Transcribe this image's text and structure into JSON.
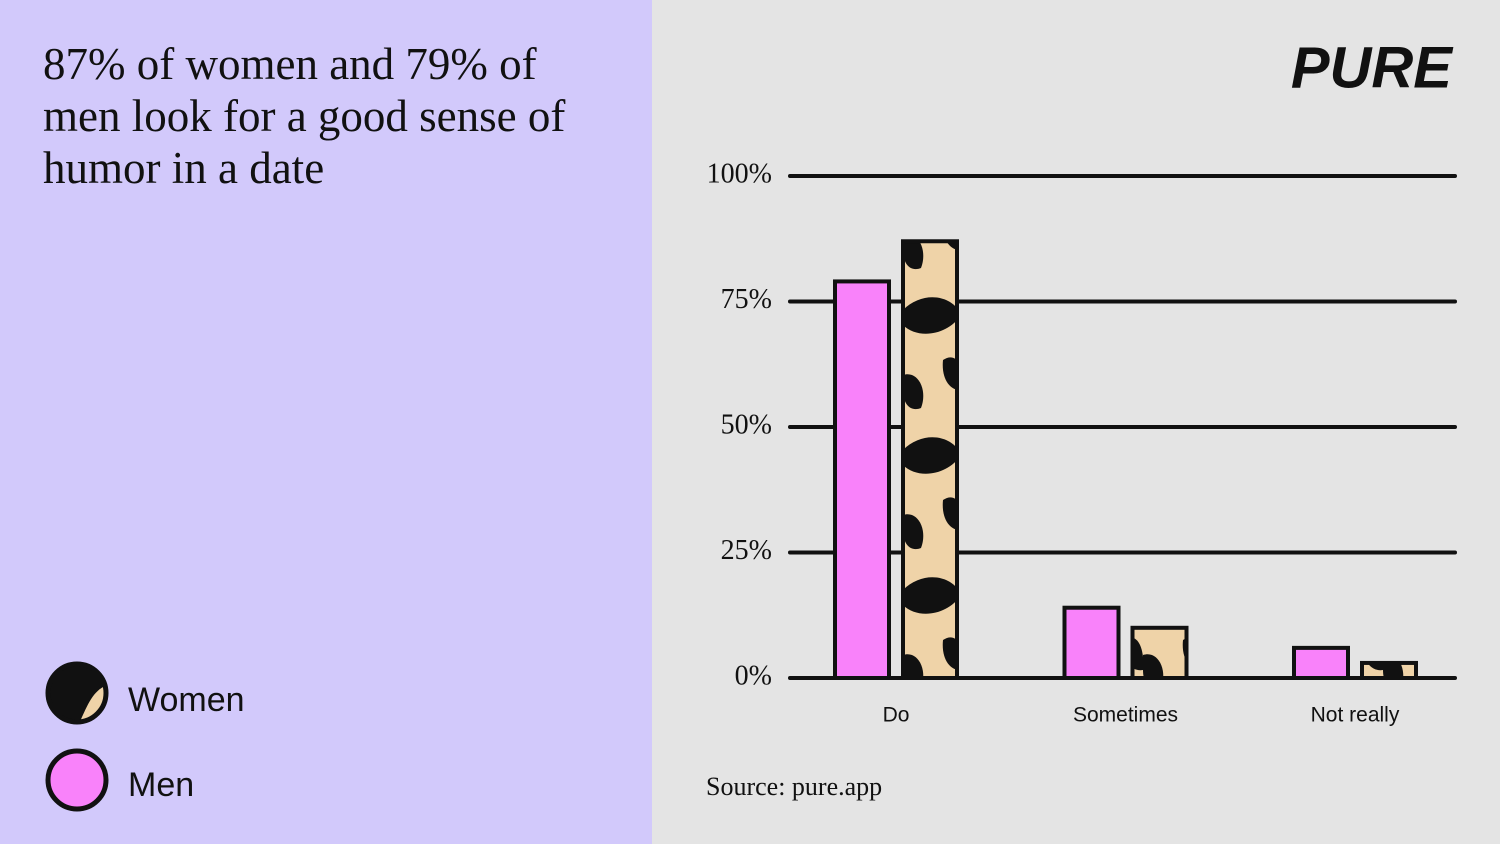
{
  "brand": "PURE",
  "chart_data": {
    "type": "bar",
    "title": "87% of women and 79% of men look for a good sense of humor in a date",
    "source": "Source: pure.app",
    "categories": [
      "Do",
      "Sometimes",
      "Not really"
    ],
    "series": [
      {
        "name": "Men",
        "color": "#f982fa",
        "values": [
          79,
          14,
          6
        ]
      },
      {
        "name": "Women",
        "color": "#efd3a8",
        "values": [
          87,
          10,
          3
        ]
      }
    ],
    "ylim": [
      0,
      100
    ],
    "yticks": [
      {
        "value": 0,
        "label": "0%"
      },
      {
        "value": 25,
        "label": "25%"
      },
      {
        "value": 50,
        "label": "50%"
      },
      {
        "value": 75,
        "label": "75%"
      },
      {
        "value": 100,
        "label": "100%"
      }
    ],
    "grid": true
  }
}
